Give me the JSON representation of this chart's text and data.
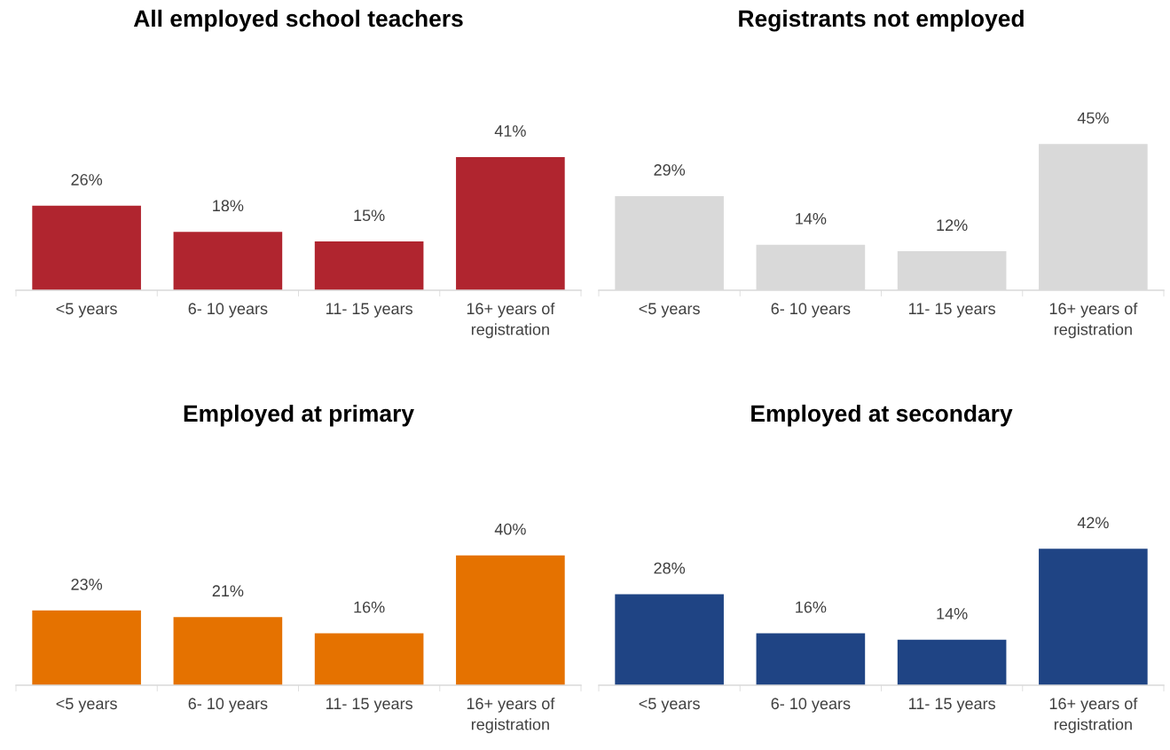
{
  "chart_data": [
    {
      "type": "bar",
      "title": "All employed school teachers",
      "categories": [
        "<5 years",
        "6- 10 years",
        "11- 15 years",
        "16+ years of\nregistration"
      ],
      "values": [
        26,
        18,
        15,
        41
      ],
      "value_labels": [
        "26%",
        "18%",
        "15%",
        "41%"
      ],
      "color": "#b0252f"
    },
    {
      "type": "bar",
      "title": "Registrants not employed",
      "categories": [
        "<5 years",
        "6- 10 years",
        "11- 15 years",
        "16+ years of\nregistration"
      ],
      "values": [
        29,
        14,
        12,
        45
      ],
      "value_labels": [
        "29%",
        "14%",
        "12%",
        "45%"
      ],
      "color": "#d9d9d9"
    },
    {
      "type": "bar",
      "title": "Employed at primary",
      "categories": [
        "<5 years",
        "6- 10 years",
        "11- 15 years",
        "16+ years of\nregistration"
      ],
      "values": [
        23,
        21,
        16,
        40
      ],
      "value_labels": [
        "23%",
        "21%",
        "16%",
        "40%"
      ],
      "color": "#e57200"
    },
    {
      "type": "bar",
      "title": "Employed at secondary",
      "categories": [
        "<5 years",
        "6- 10 years",
        "11- 15 years",
        "16+ years of\nregistration"
      ],
      "values": [
        28,
        16,
        14,
        42
      ],
      "value_labels": [
        "28%",
        "16%",
        "14%",
        "42%"
      ],
      "color": "#1f4484"
    }
  ]
}
